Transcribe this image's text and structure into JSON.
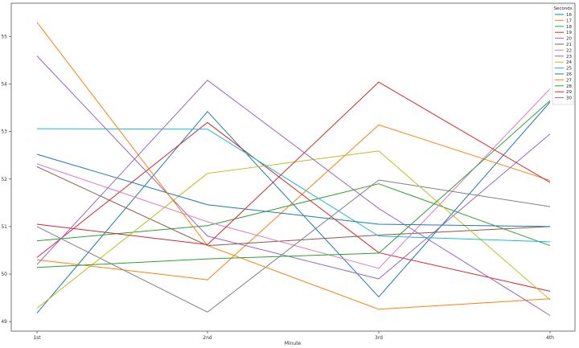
{
  "chart_data": {
    "type": "line",
    "xlabel": "Minute",
    "ylabel": "",
    "categories": [
      "1st",
      "2nd",
      "3rd",
      "4th"
    ],
    "ylim": [
      48.8,
      55.7
    ],
    "yticks": [
      49,
      50,
      51,
      52,
      53,
      54,
      55
    ],
    "grid": false,
    "legend": {
      "title": "Seconds",
      "placement": "top-right"
    },
    "series": [
      {
        "name": "16",
        "color": "#1f77b4",
        "values": [
          49.18,
          53.42,
          49.52,
          53.62
        ]
      },
      {
        "name": "17",
        "color": "#ff7f0e",
        "values": [
          50.3,
          49.88,
          53.14,
          51.97
        ]
      },
      {
        "name": "18",
        "color": "#2ca02c",
        "values": [
          50.7,
          51.02,
          51.9,
          50.6
        ]
      },
      {
        "name": "19",
        "color": "#d62728",
        "values": [
          50.35,
          53.19,
          50.45,
          49.64
        ]
      },
      {
        "name": "20",
        "color": "#9467bd",
        "values": [
          54.59,
          50.8,
          49.9,
          52.95
        ]
      },
      {
        "name": "21",
        "color": "#8c564b",
        "values": [
          52.26,
          50.6,
          50.82,
          51.0
        ]
      },
      {
        "name": "22",
        "color": "#e377c2",
        "values": [
          52.32,
          51.1,
          50.12,
          53.9
        ]
      },
      {
        "name": "23",
        "color": "#7f7f7f",
        "values": [
          51.0,
          49.2,
          51.98,
          51.42
        ]
      },
      {
        "name": "24",
        "color": "#bcbd22",
        "values": [
          49.28,
          52.12,
          52.59,
          49.46
        ]
      },
      {
        "name": "25",
        "color": "#17becf",
        "values": [
          53.06,
          53.05,
          50.8,
          50.68
        ]
      },
      {
        "name": "26",
        "color": "#1f77b4",
        "values": [
          52.52,
          51.46,
          51.05,
          51.0
        ]
      },
      {
        "name": "27",
        "color": "#ff7f0e",
        "values": [
          55.3,
          50.6,
          49.26,
          49.48
        ]
      },
      {
        "name": "28",
        "color": "#2ca02c",
        "values": [
          50.14,
          50.32,
          50.44,
          53.65
        ]
      },
      {
        "name": "29",
        "color": "#d62728",
        "values": [
          51.05,
          50.62,
          54.04,
          51.93
        ]
      },
      {
        "name": "30",
        "color": "#9467bd",
        "values": [
          50.2,
          54.08,
          51.38,
          49.13
        ]
      }
    ]
  }
}
